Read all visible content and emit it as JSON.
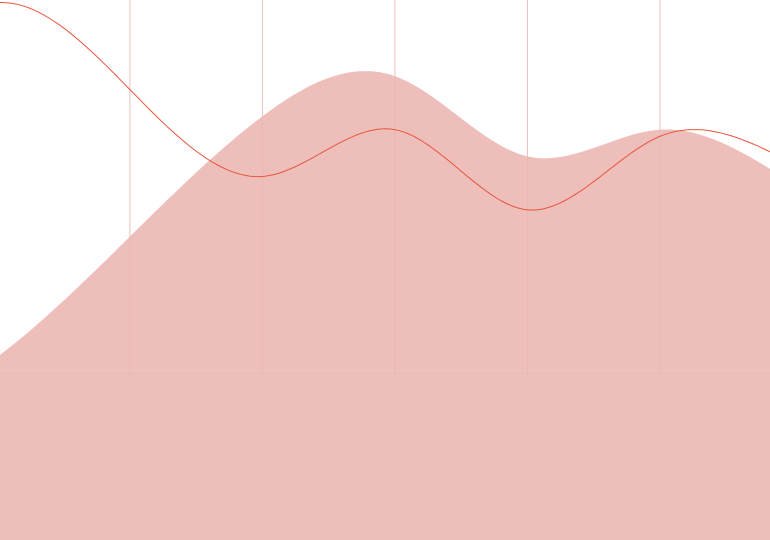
{
  "chart_data": {
    "type": "area",
    "title": "",
    "xlabel": "",
    "ylabel": "",
    "x": [
      0,
      1,
      2,
      3,
      4,
      5
    ],
    "xlim": [
      -0.98,
      4.83
    ],
    "ylim": [
      -1.27,
      2.77
    ],
    "grid": {
      "vertical": true,
      "horizontal": false
    },
    "series": [
      {
        "type": "area",
        "values": [
          1.0,
          1.9,
          2.2,
          1.6,
          1.8,
          1.4
        ]
      },
      {
        "type": "line",
        "values": [
          2.1,
          1.45,
          1.8,
          1.2,
          1.75,
          1.55
        ]
      }
    ]
  },
  "colors": {
    "area_fill": "#eebfba",
    "line": "#e8553f",
    "grid": "#f1d6d4",
    "baseline": "#ecc6c2"
  }
}
